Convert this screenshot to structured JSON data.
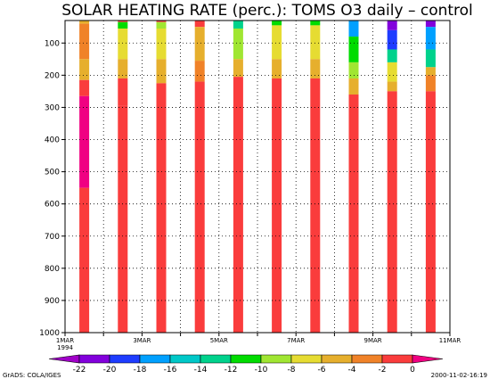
{
  "chart_data": {
    "type": "heatmap",
    "title": "SOLAR HEATING RATE (perc.): TOMS O3 daily – control",
    "y_axis": {
      "ticks": [
        "100",
        "200",
        "300",
        "400",
        "500",
        "600",
        "700",
        "800",
        "900",
        "1000"
      ],
      "values": [
        100,
        200,
        300,
        400,
        500,
        600,
        700,
        800,
        900,
        1000
      ],
      "range": [
        1000,
        30
      ]
    },
    "x_axis": {
      "ticks": [
        "1MAR",
        "3MAR",
        "5MAR",
        "7MAR",
        "9MAR",
        "11MAR"
      ],
      "sub_label": "1994",
      "range_days": [
        1,
        11
      ]
    },
    "grid": "dotted",
    "colorbar": {
      "labels": [
        "-22",
        "-20",
        "-18",
        "-16",
        "-14",
        "-12",
        "-10",
        "-8",
        "-6",
        "-4",
        "-2",
        "0"
      ],
      "colors": [
        "#a000c8",
        "#8200dc",
        "#1e3cff",
        "#00a0ff",
        "#00c8c8",
        "#00d28c",
        "#00dc00",
        "#a0e632",
        "#e6dc32",
        "#e6af2d",
        "#f08228",
        "#fa3c3c",
        "#f00082"
      ]
    },
    "columns": [
      {
        "day": 1.5,
        "bands": [
          [
            30,
            40,
            "#e6af2d"
          ],
          [
            40,
            150,
            "#f08228"
          ],
          [
            150,
            215,
            "#e6af2d"
          ],
          [
            215,
            265,
            "#fa3c3c"
          ],
          [
            265,
            550,
            "#f00082"
          ],
          [
            550,
            1000,
            "#fa3c3c"
          ]
        ]
      },
      {
        "day": 2.5,
        "bands": [
          [
            30,
            35,
            "#fa3c3c"
          ],
          [
            35,
            55,
            "#00dc00"
          ],
          [
            55,
            150,
            "#e6dc32"
          ],
          [
            150,
            210,
            "#e6af2d"
          ],
          [
            210,
            295,
            "#fa3c3c"
          ],
          [
            295,
            1000,
            "#fa3c3c"
          ]
        ]
      },
      {
        "day": 3.5,
        "bands": [
          [
            30,
            35,
            "#fa3c3c"
          ],
          [
            35,
            55,
            "#a0e632"
          ],
          [
            55,
            150,
            "#e6dc32"
          ],
          [
            150,
            225,
            "#e6af2d"
          ],
          [
            225,
            1000,
            "#fa3c3c"
          ]
        ]
      },
      {
        "day": 4.5,
        "bands": [
          [
            30,
            50,
            "#fa3c3c"
          ],
          [
            50,
            155,
            "#e6af2d"
          ],
          [
            155,
            220,
            "#f08228"
          ],
          [
            220,
            1000,
            "#fa3c3c"
          ]
        ]
      },
      {
        "day": 5.5,
        "bands": [
          [
            30,
            55,
            "#00d28c"
          ],
          [
            55,
            150,
            "#a0e632"
          ],
          [
            150,
            205,
            "#e6af2d"
          ],
          [
            205,
            1000,
            "#fa3c3c"
          ]
        ]
      },
      {
        "day": 6.5,
        "bands": [
          [
            30,
            45,
            "#00dc00"
          ],
          [
            45,
            150,
            "#e6dc32"
          ],
          [
            150,
            210,
            "#e6af2d"
          ],
          [
            210,
            1000,
            "#fa3c3c"
          ]
        ]
      },
      {
        "day": 7.5,
        "bands": [
          [
            30,
            45,
            "#00dc00"
          ],
          [
            45,
            150,
            "#e6dc32"
          ],
          [
            150,
            210,
            "#e6af2d"
          ],
          [
            210,
            1000,
            "#fa3c3c"
          ]
        ]
      },
      {
        "day": 8.5,
        "bands": [
          [
            30,
            80,
            "#00a0ff"
          ],
          [
            80,
            160,
            "#00dc00"
          ],
          [
            160,
            210,
            "#a0e632"
          ],
          [
            210,
            260,
            "#e6af2d"
          ],
          [
            260,
            1000,
            "#fa3c3c"
          ]
        ]
      },
      {
        "day": 9.5,
        "bands": [
          [
            30,
            60,
            "#8200dc"
          ],
          [
            60,
            120,
            "#1e3cff"
          ],
          [
            120,
            160,
            "#00d28c"
          ],
          [
            160,
            220,
            "#e6dc32"
          ],
          [
            220,
            250,
            "#e6af2d"
          ],
          [
            250,
            1000,
            "#fa3c3c"
          ]
        ]
      },
      {
        "day": 10.5,
        "bands": [
          [
            30,
            50,
            "#8200dc"
          ],
          [
            50,
            120,
            "#00a0ff"
          ],
          [
            120,
            175,
            "#00d28c"
          ],
          [
            175,
            200,
            "#e6af2d"
          ],
          [
            200,
            250,
            "#f08228"
          ],
          [
            250,
            1000,
            "#fa3c3c"
          ]
        ]
      }
    ],
    "footer": {
      "left": "GrADS: COLA/IGES",
      "right": "2000-11-02-16:19"
    }
  }
}
